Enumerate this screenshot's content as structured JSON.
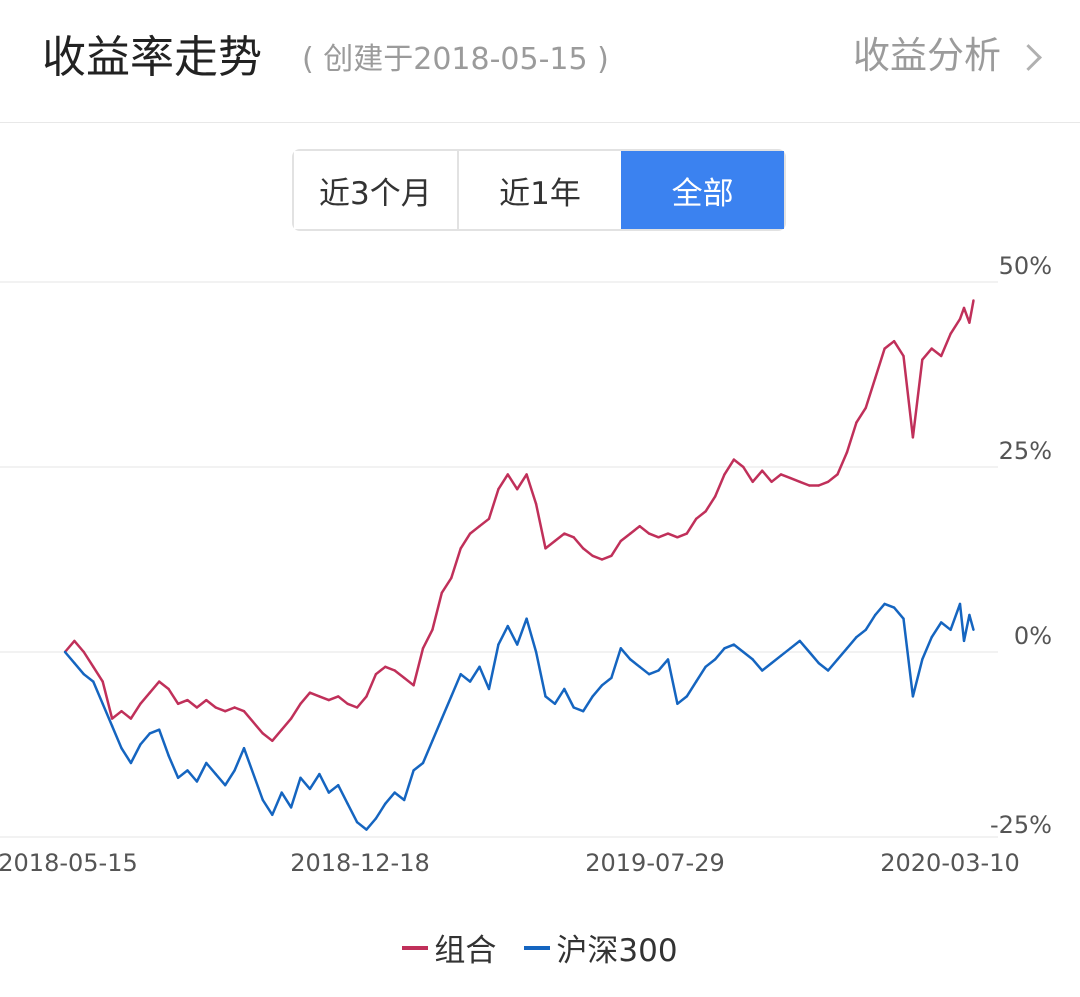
{
  "header": {
    "title": "收益率走势",
    "subtitle": "( 创建于2018-05-15 )",
    "analysis_link": "收益分析"
  },
  "tabs": [
    {
      "label": "近3个月",
      "active": false
    },
    {
      "label": "近1年",
      "active": false
    },
    {
      "label": "全部",
      "active": true
    }
  ],
  "colors": {
    "portfolio": "#c0305a",
    "benchmark": "#1565c0",
    "accent": "#3b82f0",
    "grid": "#e6e6e6"
  },
  "chart_data": {
    "type": "line",
    "x_tick_labels": [
      "2018-05-15",
      "2018-12-18",
      "2019-07-29",
      "2020-03-10"
    ],
    "x_range": [
      "2018-05-15",
      "2020-04-05"
    ],
    "y_tick_labels": [
      "50%",
      "25%",
      "0%",
      "-25%"
    ],
    "y_ticks": [
      50,
      25,
      0,
      -25
    ],
    "ylim": [
      -25,
      50
    ],
    "grid": true,
    "legend_position": "bottom",
    "series": [
      {
        "name": "组合",
        "color": "#c0305a",
        "points": [
          [
            "2018-05-15",
            0
          ],
          [
            "2018-05-22",
            1.5
          ],
          [
            "2018-05-29",
            0
          ],
          [
            "2018-06-05",
            -2
          ],
          [
            "2018-06-12",
            -4
          ],
          [
            "2018-06-19",
            -9
          ],
          [
            "2018-06-26",
            -8
          ],
          [
            "2018-07-03",
            -9
          ],
          [
            "2018-07-10",
            -7
          ],
          [
            "2018-07-17",
            -5.5
          ],
          [
            "2018-07-24",
            -4
          ],
          [
            "2018-07-31",
            -5
          ],
          [
            "2018-08-07",
            -7
          ],
          [
            "2018-08-14",
            -6.5
          ],
          [
            "2018-08-21",
            -7.5
          ],
          [
            "2018-08-28",
            -6.5
          ],
          [
            "2018-09-04",
            -7.5
          ],
          [
            "2018-09-11",
            -8
          ],
          [
            "2018-09-18",
            -7.5
          ],
          [
            "2018-09-25",
            -8
          ],
          [
            "2018-10-09",
            -11
          ],
          [
            "2018-10-16",
            -12
          ],
          [
            "2018-10-23",
            -10.5
          ],
          [
            "2018-10-30",
            -9
          ],
          [
            "2018-11-06",
            -7
          ],
          [
            "2018-11-13",
            -5.5
          ],
          [
            "2018-11-20",
            -6
          ],
          [
            "2018-11-27",
            -6.5
          ],
          [
            "2018-12-04",
            -6
          ],
          [
            "2018-12-11",
            -7
          ],
          [
            "2018-12-18",
            -7.5
          ],
          [
            "2018-12-25",
            -6
          ],
          [
            "2019-01-01",
            -3
          ],
          [
            "2019-01-08",
            -2
          ],
          [
            "2019-01-15",
            -2.5
          ],
          [
            "2019-01-22",
            -3.5
          ],
          [
            "2019-01-29",
            -4.5
          ],
          [
            "2019-02-05",
            0.5
          ],
          [
            "2019-02-12",
            3
          ],
          [
            "2019-02-19",
            8
          ],
          [
            "2019-02-26",
            10
          ],
          [
            "2019-03-05",
            14
          ],
          [
            "2019-03-12",
            16
          ],
          [
            "2019-03-19",
            17
          ],
          [
            "2019-03-26",
            18
          ],
          [
            "2019-04-02",
            22
          ],
          [
            "2019-04-09",
            24
          ],
          [
            "2019-04-16",
            22
          ],
          [
            "2019-04-23",
            24
          ],
          [
            "2019-04-30",
            20
          ],
          [
            "2019-05-07",
            14
          ],
          [
            "2019-05-14",
            15
          ],
          [
            "2019-05-21",
            16
          ],
          [
            "2019-05-28",
            15.5
          ],
          [
            "2019-06-04",
            14
          ],
          [
            "2019-06-11",
            13
          ],
          [
            "2019-06-18",
            12.5
          ],
          [
            "2019-06-25",
            13
          ],
          [
            "2019-07-02",
            15
          ],
          [
            "2019-07-09",
            16
          ],
          [
            "2019-07-16",
            17
          ],
          [
            "2019-07-23",
            16
          ],
          [
            "2019-07-30",
            15.5
          ],
          [
            "2019-08-06",
            16
          ],
          [
            "2019-08-13",
            15.5
          ],
          [
            "2019-08-20",
            16
          ],
          [
            "2019-08-27",
            18
          ],
          [
            "2019-09-03",
            19
          ],
          [
            "2019-09-10",
            21
          ],
          [
            "2019-09-17",
            24
          ],
          [
            "2019-09-24",
            26
          ],
          [
            "2019-10-01",
            25
          ],
          [
            "2019-10-08",
            23
          ],
          [
            "2019-10-15",
            24.5
          ],
          [
            "2019-10-22",
            23
          ],
          [
            "2019-10-29",
            24
          ],
          [
            "2019-11-05",
            23.5
          ],
          [
            "2019-11-12",
            23
          ],
          [
            "2019-11-19",
            22.5
          ],
          [
            "2019-11-26",
            22.5
          ],
          [
            "2019-12-03",
            23
          ],
          [
            "2019-12-10",
            24
          ],
          [
            "2019-12-17",
            27
          ],
          [
            "2019-12-24",
            31
          ],
          [
            "2019-12-31",
            33
          ],
          [
            "2020-01-07",
            37
          ],
          [
            "2020-01-14",
            41
          ],
          [
            "2020-01-21",
            42
          ],
          [
            "2020-01-28",
            40
          ],
          [
            "2020-02-04",
            29
          ],
          [
            "2020-02-11",
            39.5
          ],
          [
            "2020-02-18",
            41
          ],
          [
            "2020-02-25",
            40
          ],
          [
            "2020-03-03",
            43
          ],
          [
            "2020-03-10",
            45
          ],
          [
            "2020-03-13",
            46.5
          ],
          [
            "2020-03-17",
            44.5
          ],
          [
            "2020-03-20",
            47.5
          ]
        ]
      },
      {
        "name": "沪深300",
        "color": "#1565c0",
        "points": [
          [
            "2018-05-15",
            0
          ],
          [
            "2018-05-22",
            -1.5
          ],
          [
            "2018-05-29",
            -3
          ],
          [
            "2018-06-05",
            -4
          ],
          [
            "2018-06-12",
            -7
          ],
          [
            "2018-06-19",
            -10
          ],
          [
            "2018-06-26",
            -13
          ],
          [
            "2018-07-03",
            -15
          ],
          [
            "2018-07-10",
            -12.5
          ],
          [
            "2018-07-17",
            -11
          ],
          [
            "2018-07-24",
            -10.5
          ],
          [
            "2018-07-31",
            -14
          ],
          [
            "2018-08-07",
            -17
          ],
          [
            "2018-08-14",
            -16
          ],
          [
            "2018-08-21",
            -17.5
          ],
          [
            "2018-08-28",
            -15
          ],
          [
            "2018-09-04",
            -16.5
          ],
          [
            "2018-09-11",
            -18
          ],
          [
            "2018-09-18",
            -16
          ],
          [
            "2018-09-25",
            -13
          ],
          [
            "2018-10-09",
            -20
          ],
          [
            "2018-10-16",
            -22
          ],
          [
            "2018-10-23",
            -19
          ],
          [
            "2018-10-30",
            -21
          ],
          [
            "2018-11-06",
            -17
          ],
          [
            "2018-11-13",
            -18.5
          ],
          [
            "2018-11-20",
            -16.5
          ],
          [
            "2018-11-27",
            -19
          ],
          [
            "2018-12-04",
            -18
          ],
          [
            "2018-12-11",
            -20.5
          ],
          [
            "2018-12-18",
            -23
          ],
          [
            "2018-12-25",
            -24
          ],
          [
            "2019-01-01",
            -22.5
          ],
          [
            "2019-01-08",
            -20.5
          ],
          [
            "2019-01-15",
            -19
          ],
          [
            "2019-01-22",
            -20
          ],
          [
            "2019-01-29",
            -16
          ],
          [
            "2019-02-05",
            -15
          ],
          [
            "2019-02-12",
            -12
          ],
          [
            "2019-02-19",
            -9
          ],
          [
            "2019-02-26",
            -6
          ],
          [
            "2019-03-05",
            -3
          ],
          [
            "2019-03-12",
            -4
          ],
          [
            "2019-03-19",
            -2
          ],
          [
            "2019-03-26",
            -5
          ],
          [
            "2019-04-02",
            1
          ],
          [
            "2019-04-09",
            3.5
          ],
          [
            "2019-04-16",
            1
          ],
          [
            "2019-04-23",
            4.5
          ],
          [
            "2019-04-30",
            0
          ],
          [
            "2019-05-07",
            -6
          ],
          [
            "2019-05-14",
            -7
          ],
          [
            "2019-05-21",
            -5
          ],
          [
            "2019-05-28",
            -7.5
          ],
          [
            "2019-06-04",
            -8
          ],
          [
            "2019-06-11",
            -6
          ],
          [
            "2019-06-18",
            -4.5
          ],
          [
            "2019-06-25",
            -3.5
          ],
          [
            "2019-07-02",
            0.5
          ],
          [
            "2019-07-09",
            -1
          ],
          [
            "2019-07-16",
            -2
          ],
          [
            "2019-07-23",
            -3
          ],
          [
            "2019-07-30",
            -2.5
          ],
          [
            "2019-08-06",
            -1
          ],
          [
            "2019-08-13",
            -7
          ],
          [
            "2019-08-20",
            -6
          ],
          [
            "2019-08-27",
            -4
          ],
          [
            "2019-09-03",
            -2
          ],
          [
            "2019-09-10",
            -1
          ],
          [
            "2019-09-17",
            0.5
          ],
          [
            "2019-09-24",
            1
          ],
          [
            "2019-10-01",
            0
          ],
          [
            "2019-10-08",
            -1
          ],
          [
            "2019-10-15",
            -2.5
          ],
          [
            "2019-10-22",
            -1.5
          ],
          [
            "2019-10-29",
            -0.5
          ],
          [
            "2019-11-05",
            0.5
          ],
          [
            "2019-11-12",
            1.5
          ],
          [
            "2019-11-19",
            0
          ],
          [
            "2019-11-26",
            -1.5
          ],
          [
            "2019-12-03",
            -2.5
          ],
          [
            "2019-12-10",
            -1
          ],
          [
            "2019-12-17",
            0.5
          ],
          [
            "2019-12-24",
            2
          ],
          [
            "2019-12-31",
            3
          ],
          [
            "2020-01-07",
            5
          ],
          [
            "2020-01-14",
            6.5
          ],
          [
            "2020-01-21",
            6
          ],
          [
            "2020-01-28",
            4.5
          ],
          [
            "2020-02-04",
            -6
          ],
          [
            "2020-02-11",
            -1
          ],
          [
            "2020-02-18",
            2
          ],
          [
            "2020-02-25",
            4
          ],
          [
            "2020-03-03",
            3
          ],
          [
            "2020-03-10",
            6.5
          ],
          [
            "2020-03-13",
            1.5
          ],
          [
            "2020-03-17",
            5
          ],
          [
            "2020-03-20",
            3
          ]
        ]
      }
    ]
  }
}
